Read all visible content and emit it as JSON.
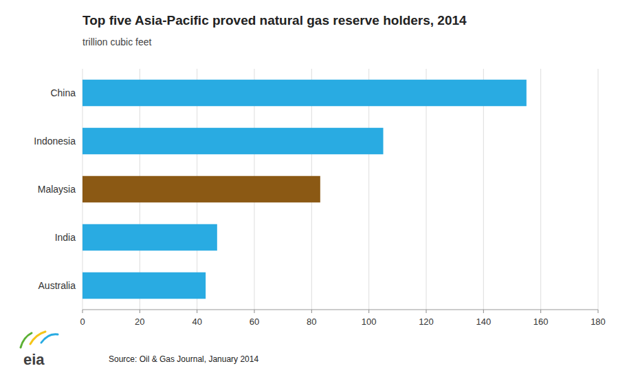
{
  "chart_data": {
    "type": "bar",
    "orientation": "horizontal",
    "title": "Top five Asia-Pacific proved natural gas reserve holders, 2014",
    "subtitle": "trillion cubic feet",
    "categories": [
      "Australia",
      "India",
      "Malaysia",
      "Indonesia",
      "China"
    ],
    "values": [
      43,
      47,
      83,
      105,
      155
    ],
    "colors": [
      "#29ABE2",
      "#29ABE2",
      "#8B5914",
      "#29ABE2",
      "#29ABE2"
    ],
    "xlim": [
      0,
      180
    ],
    "xticks": [
      0,
      20,
      40,
      60,
      80,
      100,
      120,
      140,
      160,
      180
    ],
    "grid": true,
    "annotations": [
      "Source: Oil & Gas Journal, January 2014",
      "eia"
    ]
  }
}
